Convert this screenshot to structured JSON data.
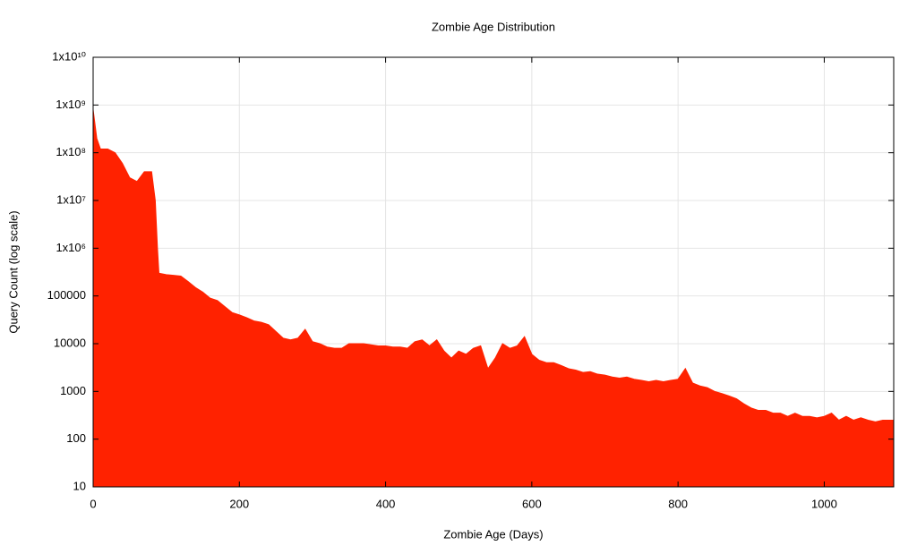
{
  "chart_data": {
    "type": "area",
    "title": "Zombie Age Distribution",
    "x_label": "Zombie Age (Days)",
    "y_label": "Query Count (log scale)",
    "yscale": "log",
    "grid": true,
    "color": "#ff2200",
    "xlim": [
      0,
      1095
    ],
    "xticks": [
      0,
      200,
      400,
      600,
      800,
      1000
    ],
    "ylim": [
      10,
      10000000000
    ],
    "yticks": [
      10,
      100,
      1000,
      10000,
      100000,
      {
        "value": 1000000,
        "label": "1x10⁶"
      },
      {
        "value": 10000000,
        "label": "1x10⁷"
      },
      {
        "value": 100000000,
        "label": "1x10⁸"
      },
      {
        "value": 1000000000,
        "label": "1x10⁹"
      },
      {
        "value": 10000000000,
        "label": "1x10¹⁰"
      }
    ],
    "x": [
      0,
      5,
      10,
      20,
      30,
      40,
      50,
      60,
      70,
      80,
      85,
      88,
      90,
      100,
      110,
      120,
      130,
      140,
      150,
      160,
      170,
      180,
      190,
      200,
      210,
      220,
      230,
      240,
      250,
      260,
      270,
      280,
      290,
      300,
      310,
      320,
      330,
      340,
      350,
      360,
      370,
      380,
      390,
      400,
      410,
      420,
      430,
      440,
      450,
      460,
      470,
      480,
      490,
      500,
      510,
      520,
      530,
      540,
      550,
      560,
      570,
      580,
      590,
      600,
      610,
      620,
      630,
      640,
      650,
      660,
      670,
      680,
      690,
      700,
      710,
      720,
      730,
      740,
      750,
      760,
      770,
      780,
      790,
      800,
      810,
      820,
      830,
      840,
      850,
      860,
      870,
      880,
      890,
      900,
      910,
      920,
      930,
      940,
      950,
      960,
      970,
      980,
      990,
      1000,
      1010,
      1020,
      1030,
      1040,
      1050,
      1060,
      1070,
      1080,
      1090,
      1095
    ],
    "values": [
      800000000,
      200000000,
      120000000,
      120000000,
      100000000,
      60000000,
      30000000,
      25000000,
      40000000,
      40000000,
      10000000,
      1000000,
      300000,
      280000,
      270000,
      260000,
      200000,
      150000,
      120000,
      90000,
      80000,
      60000,
      45000,
      40000,
      35000,
      30000,
      28000,
      25000,
      18000,
      13000,
      12000,
      13000,
      20000,
      11000,
      10000,
      8500,
      8000,
      8000,
      10000,
      10000,
      10000,
      9500,
      9000,
      9000,
      8500,
      8500,
      8000,
      11000,
      12000,
      9000,
      12000,
      7000,
      5000,
      7000,
      6000,
      8000,
      9000,
      3000,
      5000,
      10000,
      8000,
      9000,
      14000,
      6000,
      4500,
      4000,
      4000,
      3500,
      3000,
      2800,
      2500,
      2600,
      2300,
      2200,
      2000,
      1900,
      2000,
      1800,
      1700,
      1600,
      1700,
      1600,
      1700,
      1800,
      3000,
      1500,
      1300,
      1200,
      1000,
      900,
      800,
      700,
      550,
      450,
      400,
      400,
      350,
      350,
      300,
      350,
      300,
      300,
      280,
      300,
      350,
      250,
      300,
      250,
      280,
      250,
      230,
      250,
      250,
      250
    ]
  }
}
